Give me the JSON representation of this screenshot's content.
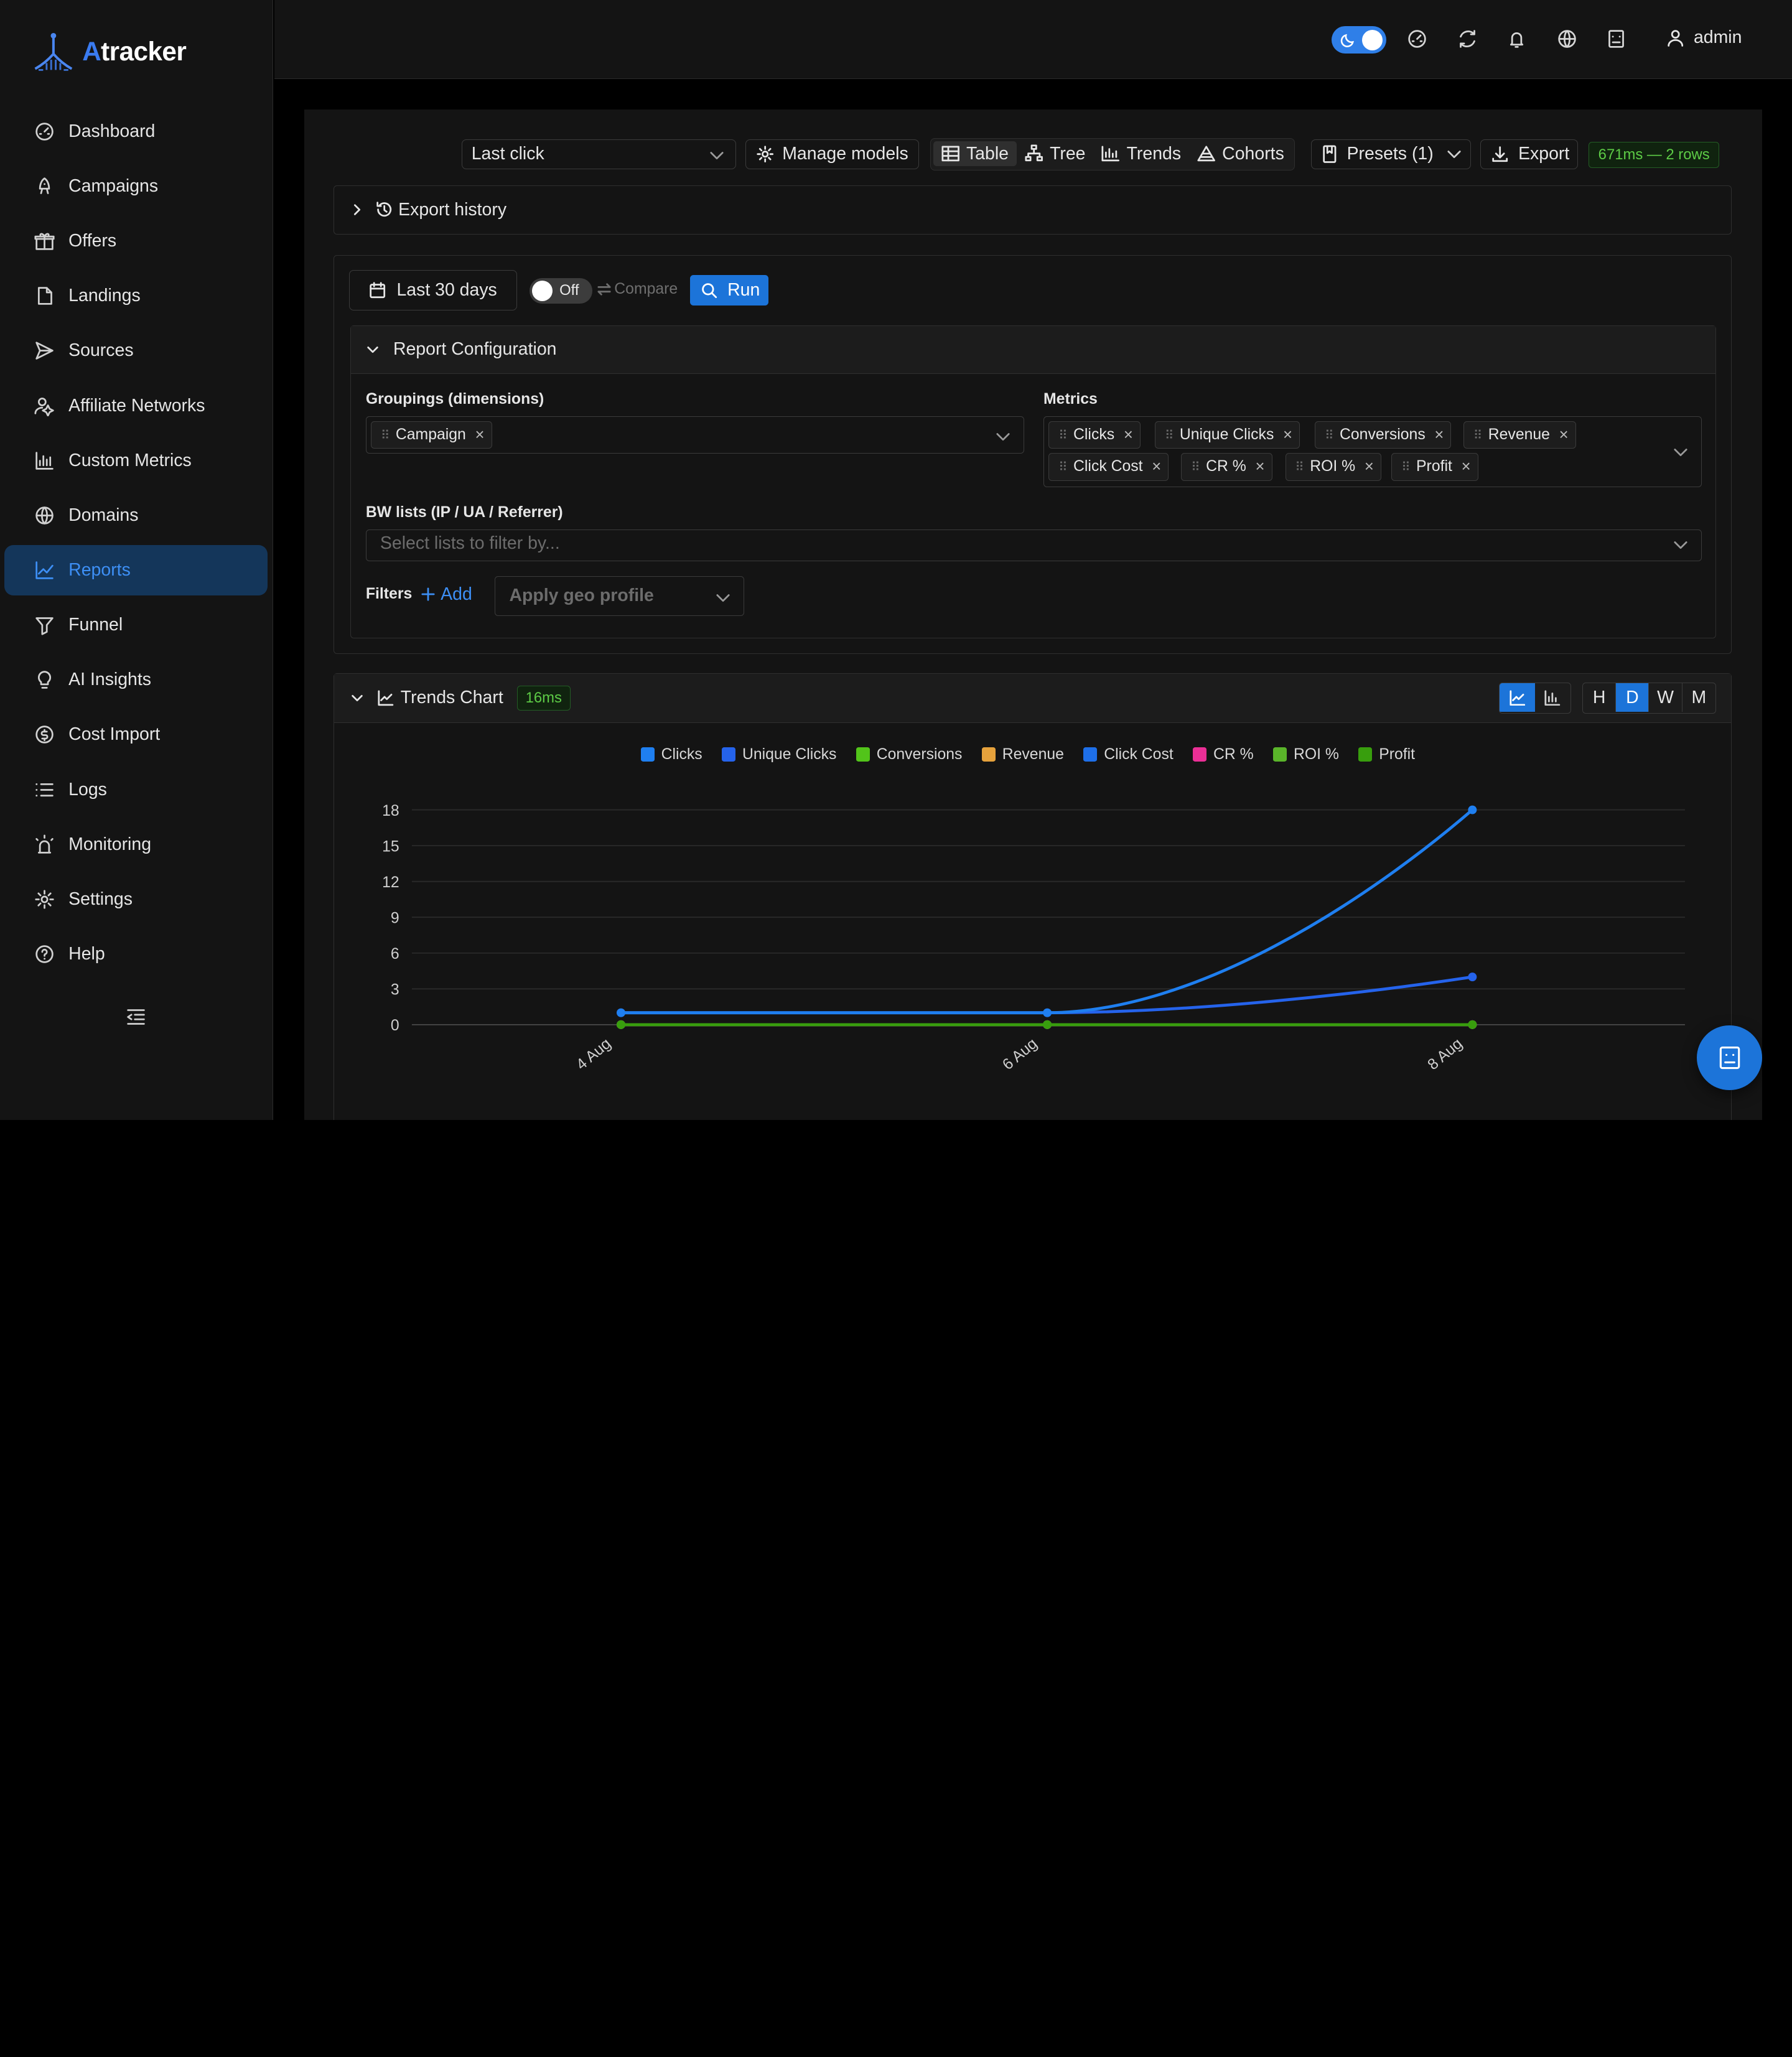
{
  "app": {
    "logo_letter": "A",
    "logo_rest": "tracker",
    "user": "admin"
  },
  "sidebar": {
    "items": [
      {
        "label": "Dashboard",
        "icon": "dashboard-icon"
      },
      {
        "label": "Campaigns",
        "icon": "campaigns-icon"
      },
      {
        "label": "Offers",
        "icon": "offers-icon"
      },
      {
        "label": "Landings",
        "icon": "landings-icon"
      },
      {
        "label": "Sources",
        "icon": "sources-icon"
      },
      {
        "label": "Affiliate Networks",
        "icon": "affiliate-networks-icon"
      },
      {
        "label": "Custom Metrics",
        "icon": "custom-metrics-icon"
      },
      {
        "label": "Domains",
        "icon": "domains-icon"
      },
      {
        "label": "Reports",
        "icon": "reports-icon",
        "active": true
      },
      {
        "label": "Funnel",
        "icon": "funnel-icon"
      },
      {
        "label": "AI Insights",
        "icon": "ai-insights-icon"
      },
      {
        "label": "Cost Import",
        "icon": "cost-import-icon"
      },
      {
        "label": "Logs",
        "icon": "logs-icon"
      },
      {
        "label": "Monitoring",
        "icon": "monitoring-icon"
      },
      {
        "label": "Settings",
        "icon": "settings-icon"
      },
      {
        "label": "Help",
        "icon": "help-icon"
      }
    ]
  },
  "toolbar": {
    "attribution_model": "Last click",
    "manage_models": "Manage models",
    "views": [
      "Table",
      "Tree",
      "Trends",
      "Cohorts"
    ],
    "active_view": "Table",
    "presets": "Presets (1)",
    "export": "Export",
    "timing": "671ms — 2 rows"
  },
  "export_history": {
    "label": "Export history"
  },
  "report": {
    "date_range": "Last 30 days",
    "compare_switch": "Off",
    "compare_label": "Compare",
    "run": "Run",
    "config_title": "Report Configuration",
    "groupings_label": "Groupings (dimensions)",
    "groupings": [
      "Campaign"
    ],
    "metrics_label": "Metrics",
    "metrics": [
      "Clicks",
      "Unique Clicks",
      "Conversions",
      "Revenue",
      "Click Cost",
      "CR %",
      "ROI %",
      "Profit"
    ],
    "bw_label": "BW lists (IP / UA / Referrer)",
    "bw_placeholder": "Select lists to filter by...",
    "filters_label": "Filters",
    "add_label": "Add",
    "geo_placeholder": "Apply geo profile"
  },
  "trends": {
    "title": "Trends Chart",
    "timing": "16ms",
    "granularity": [
      "H",
      "D",
      "W",
      "M"
    ],
    "active_granularity": "D"
  },
  "colors": {
    "accent": "#1c74d9",
    "active_nav_bg": "#14365a",
    "timing_green": "#5dcb46"
  },
  "chart_data": {
    "type": "line",
    "x": [
      "4 Aug",
      "6 Aug",
      "8 Aug"
    ],
    "ylim": [
      0,
      18
    ],
    "yticks": [
      0,
      3,
      6,
      9,
      12,
      15,
      18
    ],
    "series": [
      {
        "name": "Clicks",
        "color": "#1f7ff0",
        "values": [
          1,
          1,
          18
        ]
      },
      {
        "name": "Unique Clicks",
        "color": "#2563eb",
        "values": [
          1,
          1,
          4
        ]
      },
      {
        "name": "Conversions",
        "color": "#52c41a",
        "values": [
          0,
          0,
          0
        ]
      },
      {
        "name": "Revenue",
        "color": "#e6a23c",
        "values": [
          0,
          0,
          0
        ]
      },
      {
        "name": "Click Cost",
        "color": "#1e6fe8",
        "values": [
          0,
          0,
          0
        ]
      },
      {
        "name": "CR %",
        "color": "#eb2f96",
        "values": [
          0,
          0,
          0
        ]
      },
      {
        "name": "ROI %",
        "color": "#5ab52a",
        "values": [
          0,
          0,
          0
        ]
      },
      {
        "name": "Profit",
        "color": "#389e0d",
        "values": [
          0,
          0,
          0
        ]
      }
    ],
    "legend": "top-center",
    "grid": true
  }
}
